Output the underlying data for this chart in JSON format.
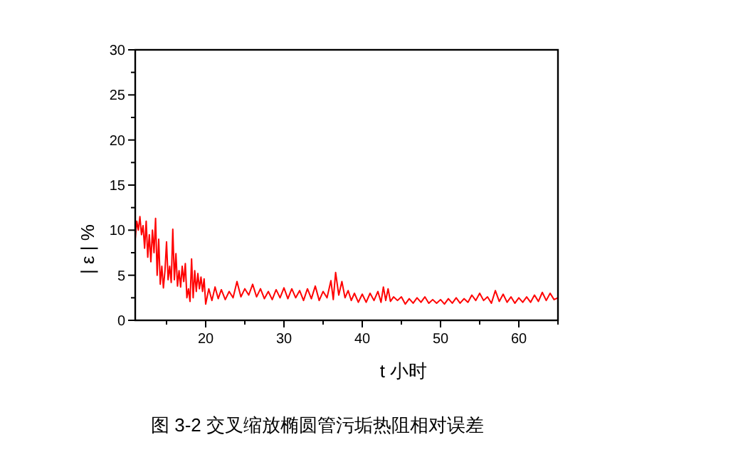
{
  "chart_data": {
    "type": "line",
    "xlabel": "t 小时",
    "ylabel": "| ε | %",
    "annotations": [
      "图 3-2  交叉缩放椭圆管污垢热阻相对误差"
    ],
    "xlim": [
      11,
      65
    ],
    "ylim": [
      0,
      30
    ],
    "xticks": [
      {
        "value": 15,
        "label": null
      },
      20,
      {
        "value": 25,
        "label": null
      },
      30,
      {
        "value": 35,
        "label": null
      },
      40,
      {
        "value": 45,
        "label": null
      },
      50,
      {
        "value": 55,
        "label": null
      },
      60,
      {
        "value": 65,
        "label": null
      }
    ],
    "yticks": [
      0,
      {
        "value": 2.5,
        "label": null
      },
      5,
      {
        "value": 7.5,
        "label": null
      },
      10,
      {
        "value": 12.5,
        "label": null
      },
      15,
      {
        "value": 17.5,
        "label": null
      },
      20,
      {
        "value": 22.5,
        "label": null
      },
      25,
      {
        "value": 27.5,
        "label": null
      },
      30
    ],
    "grid": false,
    "marker": "none",
    "line_style": "solid",
    "series": [
      {
        "color": "#ff0000",
        "x": [
          11,
          11.2,
          11.4,
          11.6,
          11.8,
          12,
          12.2,
          12.4,
          12.6,
          12.8,
          13,
          13.2,
          13.4,
          13.6,
          13.8,
          14,
          14.2,
          14.4,
          14.6,
          14.8,
          15,
          15.2,
          15.4,
          15.6,
          15.8,
          16,
          16.2,
          16.4,
          16.6,
          16.8,
          17,
          17.2,
          17.4,
          17.6,
          17.8,
          18,
          18.2,
          18.4,
          18.6,
          18.8,
          19,
          19.2,
          19.4,
          19.6,
          19.8,
          20,
          20.4,
          20.8,
          21.2,
          21.6,
          22,
          22.5,
          23,
          23.5,
          24,
          24.5,
          25,
          25.5,
          26,
          26.5,
          27,
          27.5,
          28,
          28.5,
          29,
          29.5,
          30,
          30.5,
          31,
          31.5,
          32,
          32.5,
          33,
          33.5,
          34,
          34.5,
          35,
          35.5,
          36,
          36.3,
          36.6,
          37,
          37.4,
          37.8,
          38.2,
          38.6,
          39,
          39.5,
          40,
          40.5,
          41,
          41.5,
          42,
          42.4,
          42.7,
          43,
          43.3,
          43.6,
          44,
          44.5,
          45,
          45.5,
          46,
          46.5,
          47,
          47.5,
          48,
          48.5,
          49,
          49.5,
          50,
          50.5,
          51,
          51.5,
          52,
          52.5,
          53,
          53.5,
          54,
          54.5,
          55,
          55.5,
          56,
          56.5,
          57,
          57.5,
          58,
          58.5,
          59,
          59.5,
          60,
          60.5,
          61,
          61.5,
          62,
          62.5,
          63,
          63.5,
          64,
          64.5,
          65
        ],
        "values": [
          9,
          11,
          10,
          11.5,
          9.5,
          10.5,
          8,
          11,
          7,
          9.5,
          6.5,
          10,
          7.5,
          11.3,
          5,
          9,
          4,
          6,
          3.6,
          5.5,
          8.7,
          4.5,
          6,
          4.2,
          10.1,
          4.5,
          7.4,
          3.8,
          5.5,
          3.7,
          6,
          4.3,
          6.3,
          2.5,
          3.5,
          2.1,
          6.8,
          2.5,
          5.5,
          3.2,
          5.2,
          3.5,
          4.8,
          3.2,
          4.6,
          1.8,
          3.5,
          2.2,
          3.7,
          2.4,
          3.4,
          2.3,
          3.2,
          2.5,
          4.3,
          2.6,
          3.5,
          2.8,
          4,
          2.6,
          3.5,
          2.4,
          3.2,
          2.3,
          3.4,
          2.5,
          3.6,
          2.4,
          3.5,
          2.5,
          3.3,
          2.2,
          3.5,
          2.4,
          3.8,
          2.2,
          3.2,
          2.5,
          4.4,
          2.3,
          5.3,
          2.8,
          4.3,
          2.5,
          3.3,
          2.2,
          3,
          2,
          2.9,
          2,
          3,
          2.2,
          3.2,
          2,
          3.7,
          2.2,
          3.5,
          2.1,
          2.6,
          2.2,
          2.6,
          1.8,
          2.4,
          1.9,
          2.5,
          2,
          2.6,
          1.9,
          2.3,
          1.9,
          2.3,
          1.8,
          2.4,
          1.9,
          2.5,
          1.9,
          2.4,
          2,
          2.8,
          2.2,
          3,
          2.2,
          2.6,
          1.9,
          3.3,
          2.1,
          2.9,
          2,
          2.6,
          1.9,
          2.5,
          2,
          2.6,
          2,
          2.8,
          2.1,
          3.1,
          2.2,
          3,
          2.3,
          2.5
        ]
      }
    ]
  }
}
